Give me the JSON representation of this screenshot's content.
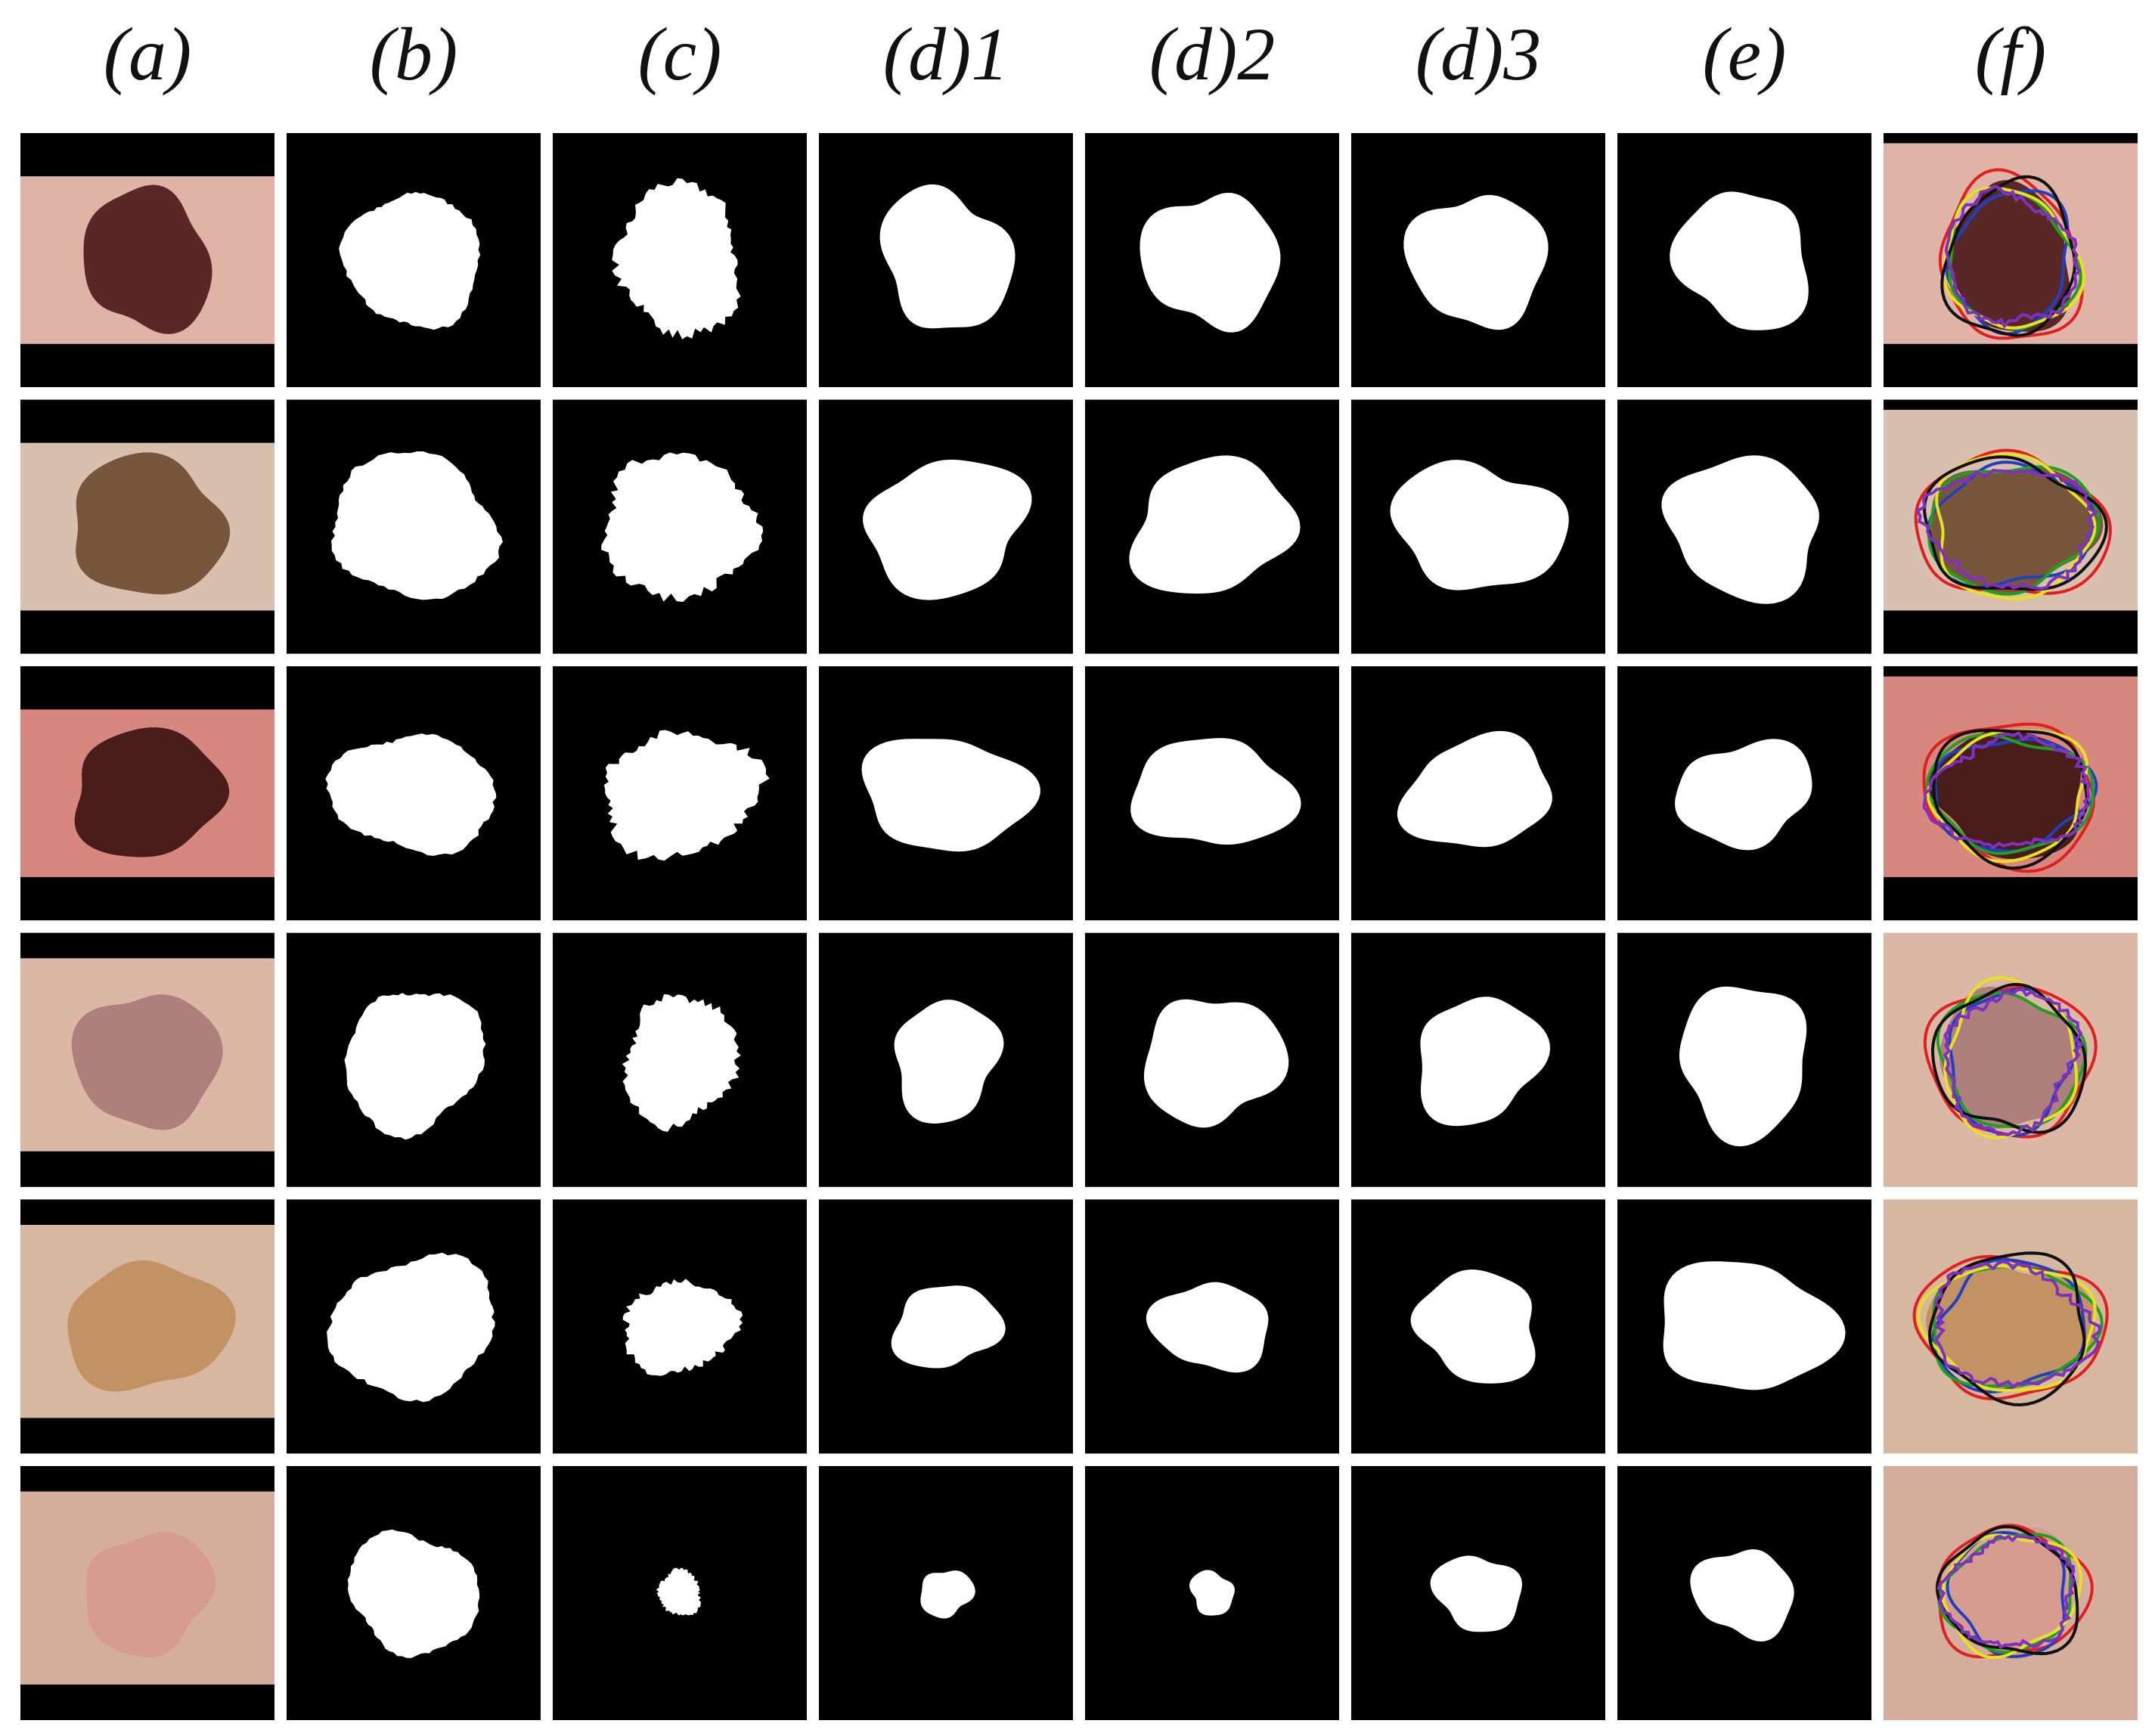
{
  "figure": {
    "column_labels": [
      "(a)",
      "(b)",
      "(c)",
      "(d)1",
      "(d)2",
      "(d)3",
      "(e)",
      "(f)"
    ]
  }
}
